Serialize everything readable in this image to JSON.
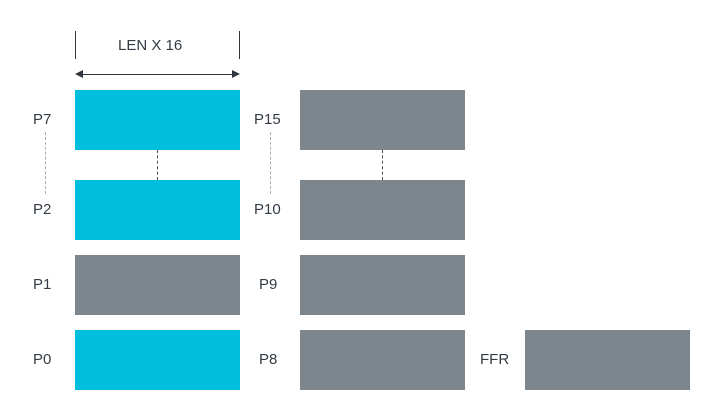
{
  "dimension": {
    "label": "LEN X 16"
  },
  "left_column": {
    "labels": {
      "p7": "P7",
      "p2": "P2",
      "p1": "P1",
      "p0": "P0"
    },
    "colors": {
      "highlight": "#00bfdd",
      "default": "#7e868d"
    }
  },
  "middle_column": {
    "labels": {
      "p15": "P15",
      "p10": "P10",
      "p9": "P9",
      "p8": "P8"
    }
  },
  "ffr": {
    "label": "FFR"
  }
}
